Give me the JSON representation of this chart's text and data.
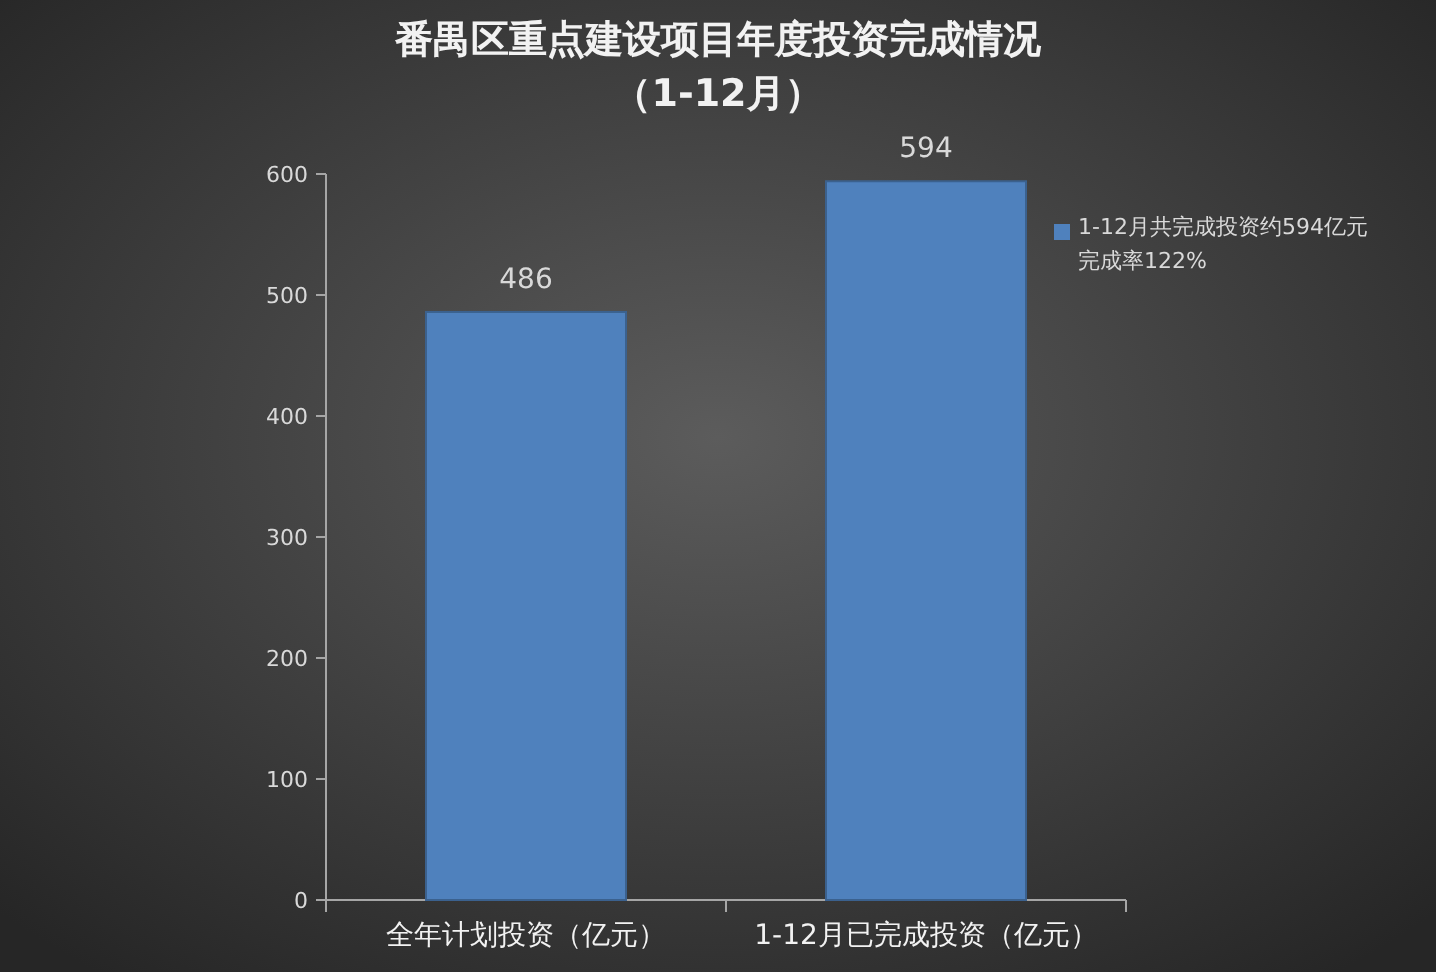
{
  "chart_data": {
    "type": "bar",
    "title": "番禺区重点建设项目年度投资完成情况",
    "subtitle": "（1-12月）",
    "categories": [
      "全年计划投资（亿元）",
      "1-12月已完成投资（亿元）"
    ],
    "series": [
      {
        "name": "1-12月共完成投资约594亿元完成率122%",
        "color": "#4f81bd",
        "values": [
          486,
          594
        ]
      }
    ],
    "ylim": [
      0,
      600
    ],
    "yticks": [
      0,
      100,
      200,
      300,
      400,
      500,
      600
    ],
    "grid": false,
    "legend": "right",
    "data_labels": true
  }
}
